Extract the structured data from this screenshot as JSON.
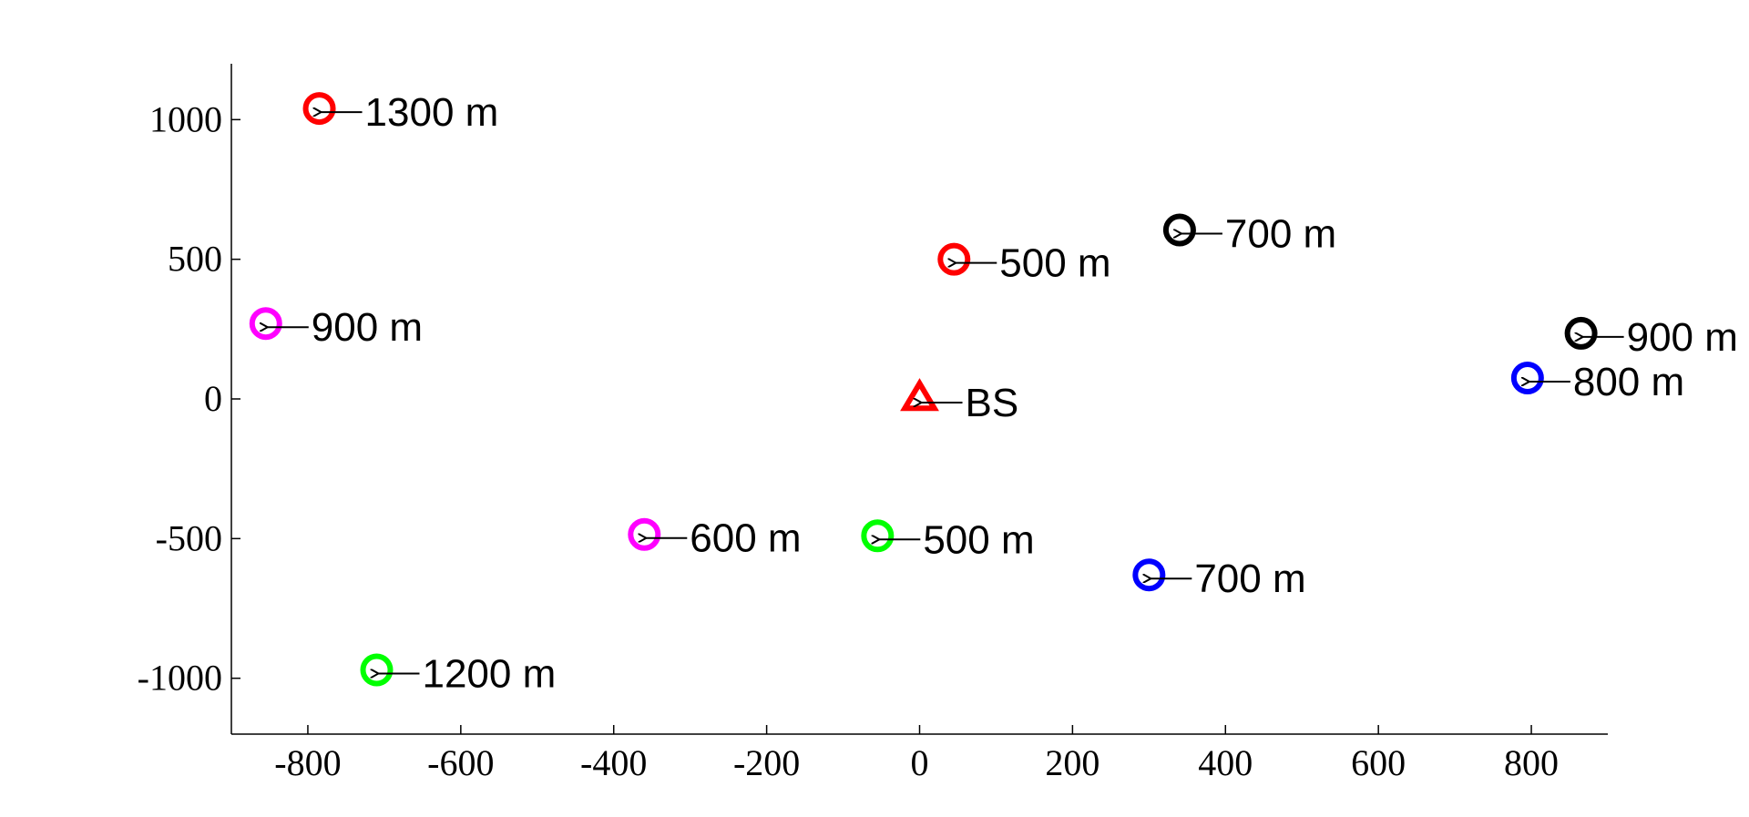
{
  "chart_data": {
    "type": "scatter",
    "title": "",
    "xlabel": "",
    "ylabel": "",
    "xlim": [
      -900,
      900
    ],
    "ylim": [
      -1200,
      1200
    ],
    "x_ticks": [
      -800,
      -600,
      -400,
      -200,
      0,
      200,
      400,
      600,
      800
    ],
    "y_ticks": [
      1000,
      500,
      0,
      -500,
      -1000
    ],
    "x_tick_labels": [
      "-800",
      "-600",
      "-400",
      "-200",
      "0",
      "200",
      "400",
      "600",
      "800"
    ],
    "y_tick_labels": [
      "1000",
      "500",
      "0",
      "-500",
      "-1000"
    ],
    "grid": false,
    "legend": null,
    "points": [
      {
        "x": -785,
        "y": 1040,
        "label": "1300 m",
        "marker": "circle",
        "color": "#ff0000"
      },
      {
        "x": 45,
        "y": 500,
        "label": "500 m",
        "marker": "circle",
        "color": "#ff0000"
      },
      {
        "x": 340,
        "y": 605,
        "label": "700 m",
        "marker": "circle",
        "color": "#000000"
      },
      {
        "x": -855,
        "y": 270,
        "label": "900 m",
        "marker": "circle",
        "color": "#ff00ff"
      },
      {
        "x": 865,
        "y": 235,
        "label": "900 m",
        "marker": "circle",
        "color": "#000000"
      },
      {
        "x": 795,
        "y": 75,
        "label": "800 m",
        "marker": "circle",
        "color": "#0000ff"
      },
      {
        "x": 0,
        "y": 0,
        "label": "BS",
        "marker": "triangle",
        "color": "#ff0000"
      },
      {
        "x": -360,
        "y": -485,
        "label": "600 m",
        "marker": "circle",
        "color": "#ff00ff"
      },
      {
        "x": -55,
        "y": -490,
        "label": "500 m",
        "marker": "circle",
        "color": "#00ff00"
      },
      {
        "x": 300,
        "y": -630,
        "label": "700 m",
        "marker": "circle",
        "color": "#0000ff"
      },
      {
        "x": -710,
        "y": -970,
        "label": "1200 m",
        "marker": "circle",
        "color": "#00ff00"
      }
    ]
  }
}
